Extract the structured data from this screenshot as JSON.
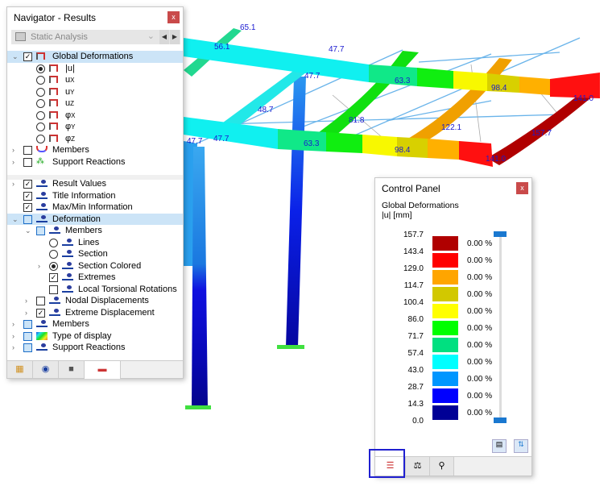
{
  "navigator": {
    "title": "Navigator - Results",
    "close_label": "x",
    "dropdown_value": "Static Analysis",
    "tree_top": [
      {
        "label": "Global Deformations",
        "type": "checkbox",
        "checked": true,
        "expanded": true,
        "selected": true,
        "level": 0,
        "icon": "deformation-icon"
      },
      {
        "label": "|u|",
        "type": "radio",
        "checked": true,
        "level": 1,
        "icon": "deformation-icon"
      },
      {
        "label": "u",
        "sub": "X",
        "type": "radio",
        "checked": false,
        "level": 1,
        "icon": "deformation-icon"
      },
      {
        "label": "u",
        "sub": "Y",
        "type": "radio",
        "checked": false,
        "level": 1,
        "icon": "deformation-icon"
      },
      {
        "label": "u",
        "sub": "Z",
        "type": "radio",
        "checked": false,
        "level": 1,
        "icon": "deformation-icon"
      },
      {
        "label": "φ",
        "sub": "X",
        "type": "radio",
        "checked": false,
        "level": 1,
        "icon": "deformation-icon"
      },
      {
        "label": "φ",
        "sub": "Y",
        "type": "radio",
        "checked": false,
        "level": 1,
        "icon": "deformation-icon"
      },
      {
        "label": "φ",
        "sub": "Z",
        "type": "radio",
        "checked": false,
        "level": 1,
        "icon": "deformation-icon"
      },
      {
        "label": "Members",
        "type": "checkbox",
        "checked": false,
        "collapsed": true,
        "level": 0,
        "icon": "members-icon"
      },
      {
        "label": "Support Reactions",
        "type": "checkbox",
        "checked": false,
        "collapsed": true,
        "level": 0,
        "icon": "support-icon"
      }
    ],
    "tree_bottom": [
      {
        "label": "Result Values",
        "type": "checkbox",
        "checked": true,
        "collapsed": true,
        "level": 0,
        "icon": "result-values-icon"
      },
      {
        "label": "Title Information",
        "type": "checkbox",
        "checked": true,
        "level": 0,
        "icon": "display-icon"
      },
      {
        "label": "Max/Min Information",
        "type": "checkbox",
        "checked": true,
        "level": 0,
        "icon": "display-icon"
      },
      {
        "label": "Deformation",
        "type": "checkbox",
        "partial": true,
        "expanded": true,
        "selected": true,
        "level": 0,
        "icon": "display-icon"
      },
      {
        "label": "Members",
        "type": "checkbox",
        "partial": true,
        "expanded": true,
        "level": 1,
        "icon": "display-icon"
      },
      {
        "label": "Lines",
        "type": "radio",
        "checked": false,
        "level": 2,
        "icon": "display-icon"
      },
      {
        "label": "Section",
        "type": "radio",
        "checked": false,
        "level": 2,
        "icon": "display-icon"
      },
      {
        "label": "Section Colored",
        "type": "radio",
        "checked": true,
        "collapsed": true,
        "level": 2,
        "icon": "display-icon"
      },
      {
        "label": "Extremes",
        "type": "checkbox",
        "checked": true,
        "level": 2,
        "icon": "display-icon"
      },
      {
        "label": "Local Torsional Rotations",
        "type": "checkbox",
        "checked": false,
        "level": 2,
        "icon": "display-icon"
      },
      {
        "label": "Nodal Displacements",
        "type": "checkbox",
        "checked": false,
        "collapsed": true,
        "level": 1,
        "icon": "display-icon"
      },
      {
        "label": "Extreme Displacement",
        "type": "checkbox",
        "checked": true,
        "collapsed": true,
        "level": 1,
        "icon": "display-icon"
      },
      {
        "label": "Members",
        "type": "checkbox",
        "partial": true,
        "collapsed": true,
        "level": 0,
        "icon": "display-icon"
      },
      {
        "label": "Type of display",
        "type": "checkbox",
        "partial": true,
        "collapsed": true,
        "level": 0,
        "icon": "type-of-display-icon"
      },
      {
        "label": "Support Reactions",
        "type": "checkbox",
        "partial": true,
        "collapsed": true,
        "level": 0,
        "icon": "display-icon"
      }
    ],
    "tabs": [
      "data-icon",
      "eye-icon",
      "camera-icon",
      "results-icon"
    ],
    "active_tab": 3
  },
  "control_panel": {
    "title": "Control Panel",
    "close_label": "x",
    "heading": "Global Deformations",
    "subheading": "|u| [mm]",
    "scale_values": [
      "157.7",
      "143.4",
      "129.0",
      "114.7",
      "100.4",
      "86.0",
      "71.7",
      "57.4",
      "43.0",
      "28.7",
      "14.3",
      "0.0"
    ],
    "colors": [
      "#b00000",
      "#ff0000",
      "#ffa500",
      "#d2c800",
      "#ffff00",
      "#00ff00",
      "#00e080",
      "#00ffff",
      "#0096ff",
      "#0000ff",
      "#000096"
    ],
    "percentages": [
      "0.00 %",
      "0.00 %",
      "0.00 %",
      "0.00 %",
      "0.00 %",
      "0.00 %",
      "0.00 %",
      "0.00 %",
      "0.00 %",
      "0.00 %",
      "0.00 %"
    ],
    "tabs": [
      "color-scale-icon",
      "balance-icon",
      "filter-icon"
    ],
    "active_tab": 0
  },
  "model_labels": [
    "65.1",
    "56.1",
    "47.7",
    "47.7",
    "48.7",
    "63.3",
    "81.8",
    "98.4",
    "141.0",
    "122.1",
    "157.7",
    "47.7",
    "47.7",
    "63.3",
    "98.4",
    "141.0"
  ]
}
